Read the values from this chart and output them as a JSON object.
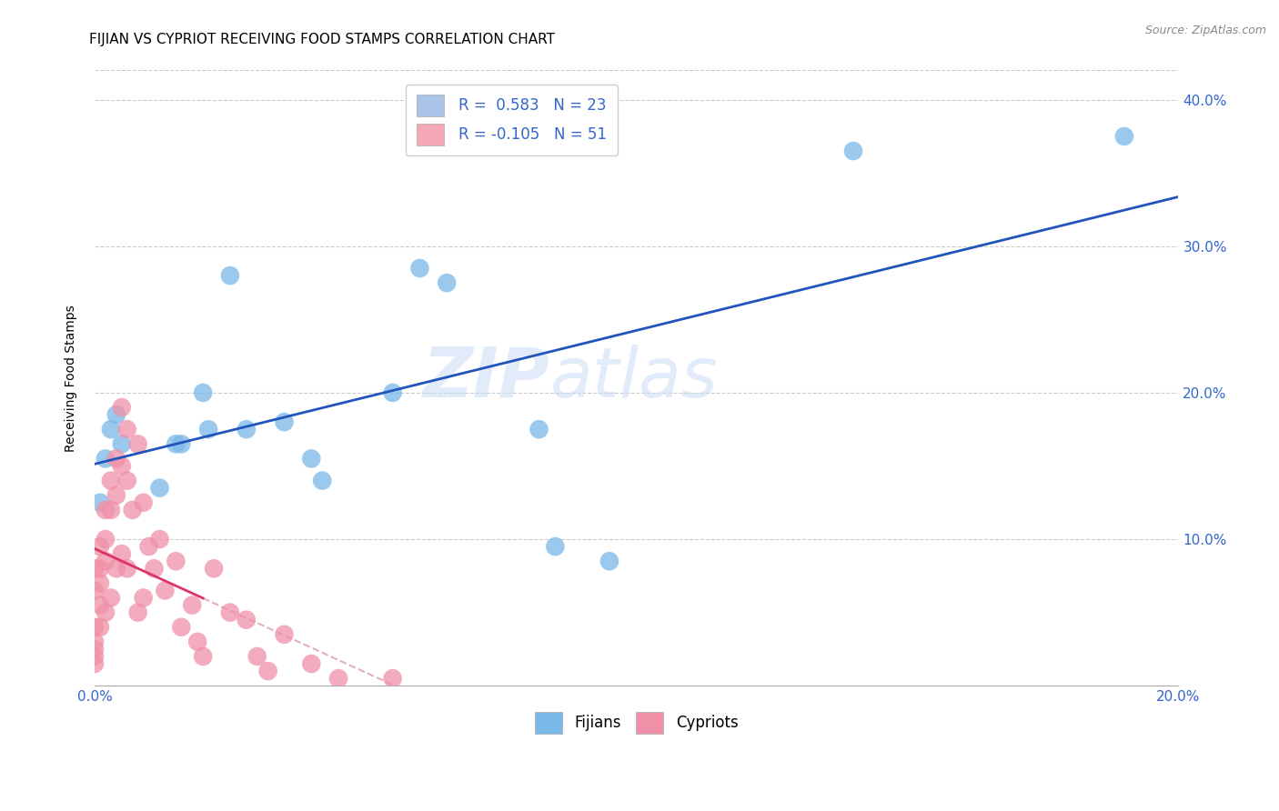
{
  "title": "FIJIAN VS CYPRIOT RECEIVING FOOD STAMPS CORRELATION CHART",
  "source": "Source: ZipAtlas.com",
  "ylabel": "Receiving Food Stamps",
  "xlim": [
    0.0,
    0.2
  ],
  "ylim": [
    0.0,
    0.42
  ],
  "xticks": [
    0.0,
    0.05,
    0.1,
    0.15,
    0.2
  ],
  "yticks": [
    0.1,
    0.2,
    0.3,
    0.4
  ],
  "xtick_labels_bottom": [
    "0.0%",
    "",
    "",
    "",
    "20.0%"
  ],
  "ytick_labels_right": [
    "10.0%",
    "20.0%",
    "30.0%",
    "40.0%"
  ],
  "legend_entries": [
    {
      "label": "R =  0.583   N = 23",
      "color": "#aac4e8"
    },
    {
      "label": "R = -0.105   N = 51",
      "color": "#f5a8b8"
    }
  ],
  "fijian_color": "#7ab8e8",
  "cypriot_color": "#f090a8",
  "fijian_line_color": "#2255bb",
  "cypriot_line_color": "#dd3366",
  "cypriot_dashed_color": "#e0b0c0",
  "watermark_zip": "ZIP",
  "watermark_atlas": "atlas",
  "fijian_x": [
    0.001,
    0.002,
    0.003,
    0.004,
    0.005,
    0.012,
    0.015,
    0.016,
    0.02,
    0.021,
    0.025,
    0.028,
    0.035,
    0.04,
    0.042,
    0.055,
    0.06,
    0.065,
    0.082,
    0.085,
    0.095,
    0.14,
    0.19
  ],
  "fijian_y": [
    0.125,
    0.155,
    0.175,
    0.185,
    0.165,
    0.135,
    0.165,
    0.165,
    0.2,
    0.175,
    0.28,
    0.175,
    0.18,
    0.155,
    0.14,
    0.2,
    0.285,
    0.275,
    0.175,
    0.095,
    0.085,
    0.365,
    0.375
  ],
  "cypriot_x": [
    0.0,
    0.0,
    0.0,
    0.0,
    0.0,
    0.0,
    0.0,
    0.001,
    0.001,
    0.001,
    0.001,
    0.001,
    0.002,
    0.002,
    0.002,
    0.002,
    0.003,
    0.003,
    0.003,
    0.004,
    0.004,
    0.004,
    0.005,
    0.005,
    0.005,
    0.006,
    0.006,
    0.006,
    0.007,
    0.008,
    0.008,
    0.009,
    0.009,
    0.01,
    0.011,
    0.012,
    0.013,
    0.015,
    0.016,
    0.018,
    0.019,
    0.02,
    0.022,
    0.025,
    0.028,
    0.03,
    0.032,
    0.035,
    0.04,
    0.045,
    0.055
  ],
  "cypriot_y": [
    0.08,
    0.065,
    0.04,
    0.03,
    0.025,
    0.02,
    0.015,
    0.095,
    0.08,
    0.07,
    0.055,
    0.04,
    0.12,
    0.1,
    0.085,
    0.05,
    0.14,
    0.12,
    0.06,
    0.155,
    0.13,
    0.08,
    0.19,
    0.15,
    0.09,
    0.175,
    0.14,
    0.08,
    0.12,
    0.165,
    0.05,
    0.125,
    0.06,
    0.095,
    0.08,
    0.1,
    0.065,
    0.085,
    0.04,
    0.055,
    0.03,
    0.02,
    0.08,
    0.05,
    0.045,
    0.02,
    0.01,
    0.035,
    0.015,
    0.005,
    0.005
  ],
  "background_color": "#ffffff",
  "grid_color": "#cccccc",
  "title_fontsize": 11,
  "axis_label_fontsize": 10,
  "tick_fontsize": 11,
  "tick_color": "#3366cc",
  "legend_fontsize": 12
}
